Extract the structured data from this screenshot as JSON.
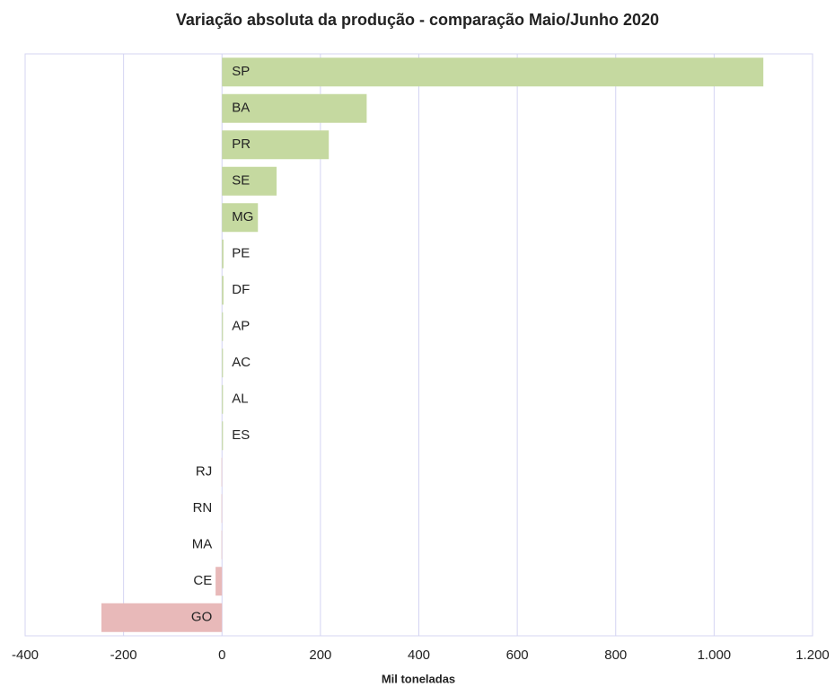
{
  "chart_data": {
    "type": "barh",
    "title": "Variação absoluta da produção - comparação Maio/Junho 2020",
    "xlabel": "Mil toneladas",
    "categories": [
      "SP",
      "BA",
      "PR",
      "SE",
      "MG",
      "PE",
      "DF",
      "AP",
      "AC",
      "AL",
      "ES",
      "RJ",
      "RN",
      "MA",
      "CE",
      "GO"
    ],
    "values": [
      1100,
      294,
      217,
      111,
      73,
      3,
      3,
      2,
      2,
      2,
      2,
      -1,
      -1,
      -1,
      -13,
      -245
    ],
    "positive_color": "#c5d9a0",
    "negative_color": "#e8b9b9",
    "xlim": [
      -400,
      1200
    ],
    "xticks": [
      -400,
      -200,
      0,
      200,
      400,
      600,
      800,
      {
        "value": 1000,
        "label": "1.000"
      },
      {
        "value": 1200,
        "label": "1.200"
      }
    ],
    "grid": true
  }
}
